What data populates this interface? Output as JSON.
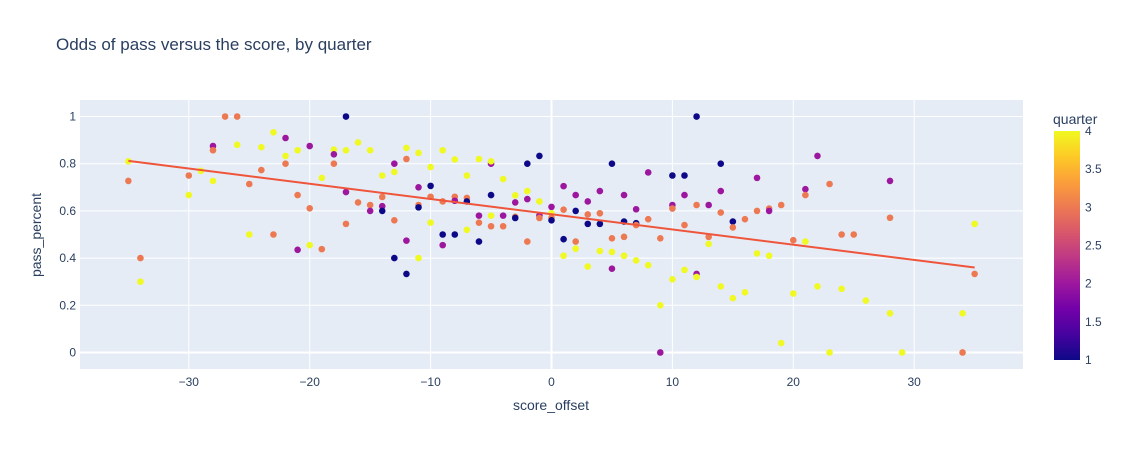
{
  "chart_data": {
    "type": "scatter",
    "title": "Odds of pass versus the score, by quarter",
    "xlabel": "score_offset",
    "ylabel": "pass_percent",
    "xlim": [
      -39,
      39
    ],
    "ylim": [
      -0.07,
      1.07
    ],
    "xticks": [
      -30,
      -20,
      -10,
      0,
      10,
      20,
      30
    ],
    "xtick_labels": [
      "−30",
      "−20",
      "−10",
      "0",
      "10",
      "20",
      "30"
    ],
    "yticks": [
      0,
      0.2,
      0.4,
      0.6,
      0.8,
      1
    ],
    "ytick_labels": [
      "0",
      "0.2",
      "0.4",
      "0.6",
      "0.8",
      "1"
    ],
    "grid": true,
    "colorbar": {
      "title": "quarter",
      "range": [
        1,
        4
      ],
      "ticks": [
        1,
        1.5,
        2,
        2.5,
        3,
        3.5,
        4
      ],
      "tick_labels": [
        "1",
        "1.5",
        "2",
        "2.5",
        "3",
        "3.5",
        "4"
      ],
      "colorscale": [
        "#0d0887",
        "#46039f",
        "#7201a8",
        "#9c179e",
        "#bd3786",
        "#d8576b",
        "#ed7953",
        "#fb9f3a",
        "#fdca26",
        "#f0f921"
      ]
    },
    "trendline": {
      "color": "#ef553b",
      "points": [
        [
          -35,
          0.812
        ],
        [
          35,
          0.36
        ]
      ]
    },
    "points": [
      [
        -35,
        0.81,
        4
      ],
      [
        -35,
        0.727,
        3
      ],
      [
        -34,
        0.4,
        3
      ],
      [
        -34,
        0.3,
        4
      ],
      [
        -30,
        0.75,
        3
      ],
      [
        -30,
        0.667,
        4
      ],
      [
        -29,
        0.77,
        4
      ],
      [
        -28,
        0.875,
        2
      ],
      [
        -28,
        0.857,
        3
      ],
      [
        -28,
        0.727,
        4
      ],
      [
        -27,
        1.0,
        3
      ],
      [
        -26,
        1.0,
        3
      ],
      [
        -26,
        0.88,
        4
      ],
      [
        -25,
        0.714,
        3
      ],
      [
        -25,
        0.5,
        4
      ],
      [
        -24,
        0.87,
        4
      ],
      [
        -24,
        0.773,
        3
      ],
      [
        -23,
        0.933,
        4
      ],
      [
        -23,
        0.5,
        3
      ],
      [
        -22,
        0.909,
        2
      ],
      [
        -22,
        0.8,
        3
      ],
      [
        -22,
        0.833,
        4
      ],
      [
        -21,
        0.857,
        4
      ],
      [
        -21,
        0.667,
        3
      ],
      [
        -21,
        0.435,
        2
      ],
      [
        -20,
        0.875,
        2
      ],
      [
        -20,
        0.611,
        3
      ],
      [
        -20,
        0.455,
        4
      ],
      [
        -19,
        0.74,
        4
      ],
      [
        -19,
        0.438,
        3
      ],
      [
        -18,
        0.86,
        4
      ],
      [
        -18,
        0.84,
        2
      ],
      [
        -18,
        0.8,
        3
      ],
      [
        -17,
        1.0,
        1
      ],
      [
        -17,
        0.857,
        4
      ],
      [
        -17,
        0.68,
        2
      ],
      [
        -17,
        0.545,
        3
      ],
      [
        -16,
        0.89,
        4
      ],
      [
        -16,
        0.636,
        3
      ],
      [
        -15,
        0.857,
        4
      ],
      [
        -15,
        0.625,
        3
      ],
      [
        -15,
        0.6,
        2
      ],
      [
        -14,
        0.75,
        4
      ],
      [
        -14,
        0.659,
        3
      ],
      [
        -14,
        0.62,
        2
      ],
      [
        -14,
        0.6,
        1
      ],
      [
        -13,
        0.8,
        2
      ],
      [
        -13,
        0.765,
        4
      ],
      [
        -13,
        0.56,
        3
      ],
      [
        -13,
        0.4,
        1
      ],
      [
        -12,
        0.867,
        4
      ],
      [
        -12,
        0.82,
        3
      ],
      [
        -12,
        0.474,
        2
      ],
      [
        -12,
        0.333,
        1
      ],
      [
        -11,
        0.846,
        4
      ],
      [
        -11,
        0.7,
        2
      ],
      [
        -11,
        0.625,
        3
      ],
      [
        -11,
        0.615,
        1
      ],
      [
        -11,
        0.4,
        4
      ],
      [
        -10,
        0.786,
        4
      ],
      [
        -10,
        0.706,
        1
      ],
      [
        -10,
        0.66,
        3
      ],
      [
        -10,
        0.55,
        4
      ],
      [
        -9,
        0.857,
        4
      ],
      [
        -9,
        0.64,
        3
      ],
      [
        -9,
        0.5,
        1
      ],
      [
        -9,
        0.455,
        2
      ],
      [
        -8,
        0.818,
        4
      ],
      [
        -8,
        0.66,
        3
      ],
      [
        -8,
        0.643,
        2
      ],
      [
        -8,
        0.5,
        1
      ],
      [
        -7,
        0.75,
        4
      ],
      [
        -7,
        0.655,
        3
      ],
      [
        -7,
        0.64,
        1
      ],
      [
        -7,
        0.52,
        4
      ],
      [
        -6,
        0.82,
        4
      ],
      [
        -6,
        0.58,
        2
      ],
      [
        -6,
        0.55,
        3
      ],
      [
        -6,
        0.47,
        1
      ],
      [
        -5,
        0.8,
        2
      ],
      [
        -5,
        0.81,
        4
      ],
      [
        -5,
        0.667,
        1
      ],
      [
        -5,
        0.58,
        4
      ],
      [
        -5,
        0.535,
        3
      ],
      [
        -4,
        0.735,
        4
      ],
      [
        -4,
        0.58,
        2
      ],
      [
        -4,
        0.535,
        3
      ],
      [
        -3,
        0.666,
        4
      ],
      [
        -3,
        0.636,
        2
      ],
      [
        -3,
        0.575,
        3
      ],
      [
        -3,
        0.57,
        1
      ],
      [
        -2,
        0.8,
        1
      ],
      [
        -2,
        0.684,
        4
      ],
      [
        -2,
        0.65,
        2
      ],
      [
        -2,
        0.47,
        3
      ],
      [
        -1,
        0.833,
        1
      ],
      [
        -1,
        0.64,
        4
      ],
      [
        -1,
        0.58,
        2
      ],
      [
        -1,
        0.57,
        3
      ],
      [
        0,
        0.617,
        2
      ],
      [
        0,
        0.59,
        4
      ],
      [
        0,
        0.571,
        3
      ],
      [
        0,
        0.56,
        1
      ],
      [
        1,
        0.705,
        2
      ],
      [
        1,
        0.605,
        3
      ],
      [
        1,
        0.48,
        1
      ],
      [
        1,
        0.41,
        4
      ],
      [
        2,
        0.667,
        2
      ],
      [
        2,
        0.6,
        1
      ],
      [
        2,
        0.47,
        3
      ],
      [
        2,
        0.44,
        4
      ],
      [
        3,
        0.64,
        2
      ],
      [
        3,
        0.585,
        3
      ],
      [
        3,
        0.545,
        1
      ],
      [
        3,
        0.364,
        4
      ],
      [
        4,
        0.684,
        2
      ],
      [
        4,
        0.59,
        3
      ],
      [
        4,
        0.545,
        1
      ],
      [
        4,
        0.43,
        4
      ],
      [
        5,
        0.8,
        1
      ],
      [
        5,
        0.484,
        3
      ],
      [
        5,
        0.426,
        4
      ],
      [
        5,
        0.355,
        2
      ],
      [
        6,
        0.667,
        2
      ],
      [
        6,
        0.555,
        1
      ],
      [
        6,
        0.49,
        3
      ],
      [
        6,
        0.41,
        4
      ],
      [
        7,
        0.607,
        2
      ],
      [
        7,
        0.548,
        1
      ],
      [
        7,
        0.54,
        3
      ],
      [
        7,
        0.39,
        4
      ],
      [
        8,
        0.763,
        2
      ],
      [
        8,
        0.565,
        3
      ],
      [
        8,
        0.37,
        4
      ],
      [
        9,
        0.484,
        3
      ],
      [
        9,
        0.2,
        4
      ],
      [
        9,
        0.0,
        2
      ],
      [
        10,
        0.75,
        1
      ],
      [
        10,
        0.625,
        2
      ],
      [
        10,
        0.61,
        3
      ],
      [
        10,
        0.31,
        4
      ],
      [
        11,
        0.75,
        1
      ],
      [
        11,
        0.667,
        2
      ],
      [
        11,
        0.54,
        3
      ],
      [
        11,
        0.35,
        4
      ],
      [
        12,
        1.0,
        1
      ],
      [
        12,
        0.625,
        3
      ],
      [
        12,
        0.333,
        2
      ],
      [
        12,
        0.32,
        4
      ],
      [
        13,
        0.625,
        2
      ],
      [
        13,
        0.49,
        3
      ],
      [
        13,
        0.46,
        4
      ],
      [
        14,
        0.8,
        1
      ],
      [
        14,
        0.684,
        2
      ],
      [
        14,
        0.593,
        3
      ],
      [
        14,
        0.28,
        4
      ],
      [
        15,
        0.555,
        1
      ],
      [
        15,
        0.53,
        3
      ],
      [
        15,
        0.23,
        4
      ],
      [
        16,
        0.565,
        3
      ],
      [
        16,
        0.255,
        4
      ],
      [
        17,
        0.74,
        2
      ],
      [
        17,
        0.6,
        3
      ],
      [
        17,
        0.42,
        4
      ],
      [
        18,
        0.61,
        3
      ],
      [
        18,
        0.6,
        2
      ],
      [
        18,
        0.41,
        4
      ],
      [
        19,
        0.625,
        3
      ],
      [
        19,
        0.04,
        4
      ],
      [
        20,
        0.476,
        3
      ],
      [
        20,
        0.25,
        4
      ],
      [
        21,
        0.692,
        2
      ],
      [
        21,
        0.667,
        3
      ],
      [
        21,
        0.47,
        4
      ],
      [
        22,
        0.833,
        2
      ],
      [
        22,
        0.28,
        4
      ],
      [
        23,
        0.714,
        3
      ],
      [
        23,
        0.0,
        4
      ],
      [
        24,
        0.5,
        3
      ],
      [
        24,
        0.27,
        4
      ],
      [
        25,
        0.5,
        3
      ],
      [
        26,
        0.22,
        4
      ],
      [
        28,
        0.727,
        2
      ],
      [
        28,
        0.571,
        3
      ],
      [
        28,
        0.166,
        4
      ],
      [
        29,
        0.0,
        4
      ],
      [
        34,
        0.166,
        4
      ],
      [
        34,
        0.0,
        3
      ],
      [
        35,
        0.545,
        4
      ],
      [
        35,
        0.333,
        3
      ]
    ]
  }
}
